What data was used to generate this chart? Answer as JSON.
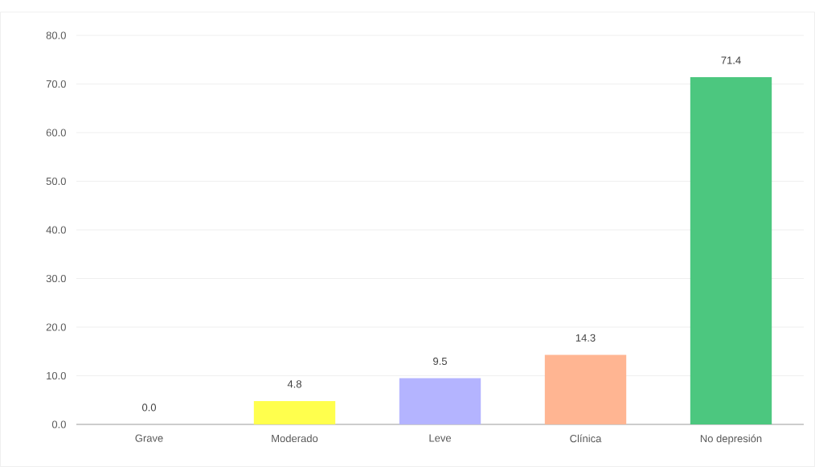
{
  "chart_data": {
    "type": "bar",
    "categories": [
      "Grave",
      "Moderado",
      "Leve",
      "Clínica",
      "No depresión"
    ],
    "values": [
      0.0,
      4.8,
      9.5,
      14.3,
      71.4
    ],
    "colors": [
      "#a0a0a0",
      "#ffff4d",
      "#b4b4ff",
      "#ffb592",
      "#4cc77f"
    ],
    "value_labels": [
      "0.0",
      "4.8",
      "9.5",
      "14.3",
      "71.4"
    ],
    "ylim": [
      0,
      80
    ],
    "yticks": [
      {
        "value": 0,
        "label": "0.0"
      },
      {
        "value": 10,
        "label": "10.0"
      },
      {
        "value": 20,
        "label": "20.0"
      },
      {
        "value": 30,
        "label": "30.0"
      },
      {
        "value": 40,
        "label": "40.0"
      },
      {
        "value": 50,
        "label": "50.0"
      },
      {
        "value": 60,
        "label": "60.0"
      },
      {
        "value": 70,
        "label": "70.0"
      },
      {
        "value": 80,
        "label": "80.0"
      }
    ],
    "grid": "y"
  }
}
